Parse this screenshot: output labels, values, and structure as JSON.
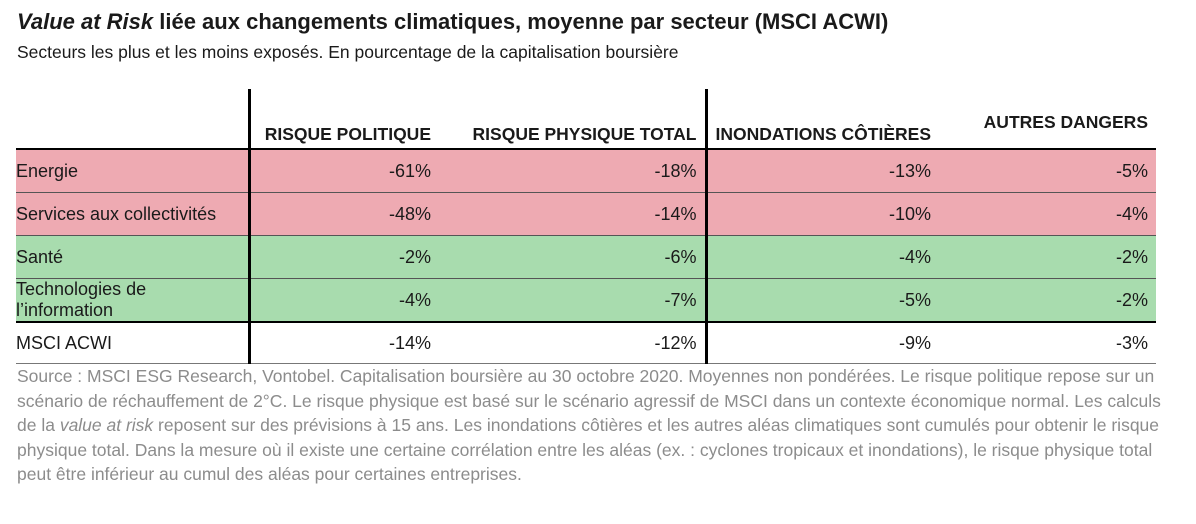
{
  "title": {
    "italic_part": "Value at Risk",
    "rest": " liée aux changements climatiques, moyenne par secteur (MSCI ACWI)"
  },
  "subtitle": "Secteurs les plus et les moins exposés. En pourcentage de la capitalisation boursière",
  "table": {
    "headers": [
      "",
      "RISQUE POLITIQUE",
      "RISQUE PHYSIQUE TOTAL",
      "INONDATIONS CÔTIÈRES",
      "AUTRES DANGERS"
    ],
    "rows": [
      {
        "sector": "Energie",
        "values": [
          "-61%",
          "-18%",
          "-13%",
          "-5%"
        ]
      },
      {
        "sector": "Services aux collectivités",
        "values": [
          "-48%",
          "-14%",
          "-10%",
          "-4%"
        ]
      },
      {
        "sector": "Santé",
        "values": [
          "-2%",
          "-6%",
          "-4%",
          "-2%"
        ]
      },
      {
        "sector": "Technologies de l’information",
        "values": [
          "-4%",
          "-7%",
          "-5%",
          "-2%"
        ]
      },
      {
        "sector": "MSCI ACWI",
        "values": [
          "-14%",
          "-12%",
          "-9%",
          "-3%"
        ]
      }
    ],
    "row_colors": {
      "most_exposed": "#eeaab2",
      "least_exposed": "#a8dcae"
    }
  },
  "source": {
    "part1": "Source : MSCI ESG Research, Vontobel. Capitalisation boursière au 30 octobre 2020. Moyennes non pondérées. Le risque politique repose sur un scénario de réchauffement de 2°C. Le risque physique est basé sur le scénario agressif de MSCI dans un contexte économique normal. Les calculs de la ",
    "italic": "value at risk",
    "part2": " reposent sur des prévisions à 15 ans. Les inondations côtières et les autres aléas climatiques sont cumulés pour obtenir le risque physique total. Dans la mesure où il existe une certaine corrélation entre les aléas (ex. : cyclones tropicaux et inondations), le risque physique total peut être inférieur au cumul des aléas pour certaines entreprises."
  }
}
